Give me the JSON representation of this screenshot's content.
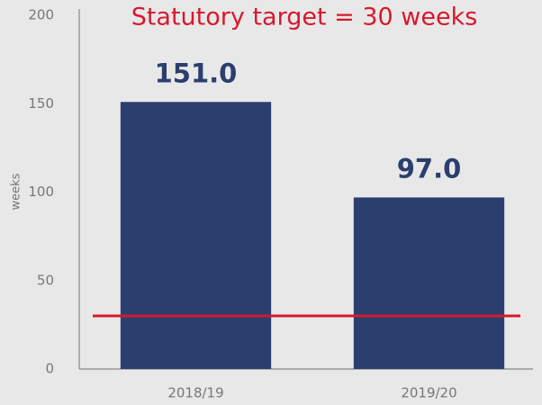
{
  "chart_data": {
    "type": "bar",
    "categories": [
      "2018/19",
      "2019/20"
    ],
    "values": [
      151,
      97
    ],
    "value_labels": [
      "151.0",
      "97.0"
    ],
    "color": "#2b3f6e",
    "ylabel": "weeks",
    "ylim": [
      0,
      200
    ],
    "yticks": [
      0,
      50,
      100,
      150,
      200
    ],
    "reference_line": {
      "value": 30,
      "label": "Statutory target = 30 weeks",
      "color": "#d7192d"
    }
  }
}
